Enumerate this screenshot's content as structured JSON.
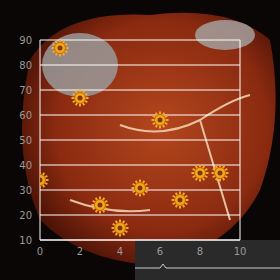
{
  "chart_data": {
    "type": "scatter",
    "x": [
      1,
      2,
      6,
      0,
      5,
      3,
      8,
      9,
      7,
      4
    ],
    "values": [
      86.8,
      66.8,
      58,
      34,
      30.8,
      24,
      36.8,
      36.8,
      26,
      14.8
    ],
    "color": "#f5a623",
    "marker": "sun",
    "xlim": [
      0,
      10
    ],
    "xticks": [
      0,
      2,
      4,
      6,
      8,
      10
    ],
    "ylim": [
      10,
      90
    ],
    "yticks": [
      10,
      20,
      30,
      40,
      50,
      60,
      70,
      80,
      90
    ],
    "grid": true
  }
}
